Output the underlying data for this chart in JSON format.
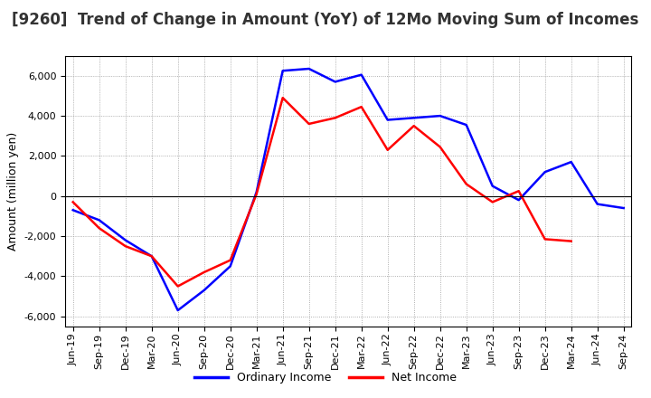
{
  "title": "[9260]  Trend of Change in Amount (YoY) of 12Mo Moving Sum of Incomes",
  "ylabel": "Amount (million yen)",
  "x_labels": [
    "Jun-19",
    "Sep-19",
    "Dec-19",
    "Mar-20",
    "Jun-20",
    "Sep-20",
    "Dec-20",
    "Mar-21",
    "Jun-21",
    "Sep-21",
    "Dec-21",
    "Mar-22",
    "Jun-22",
    "Sep-22",
    "Dec-22",
    "Mar-23",
    "Jun-23",
    "Sep-23",
    "Dec-23",
    "Mar-24",
    "Jun-24",
    "Sep-24"
  ],
  "ordinary_income": [
    -700,
    -1200,
    -2200,
    -3000,
    -5700,
    -4700,
    -3500,
    200,
    6250,
    6350,
    5700,
    6050,
    3800,
    3900,
    4000,
    3550,
    500,
    -200,
    1200,
    1700,
    -400,
    -600
  ],
  "net_income": [
    -300,
    -1600,
    -2500,
    -3000,
    -4500,
    -3800,
    -3200,
    100,
    4900,
    3600,
    3900,
    4450,
    2300,
    3500,
    2450,
    600,
    -300,
    250,
    -2150,
    -2250,
    null,
    null
  ],
  "ordinary_income_color": "#0000ff",
  "net_income_color": "#ff0000",
  "background_color": "#ffffff",
  "grid_color": "#999999",
  "ylim": [
    -6500,
    7000
  ],
  "yticks": [
    -6000,
    -4000,
    -2000,
    0,
    2000,
    4000,
    6000
  ],
  "line_width": 1.8,
  "title_fontsize": 12,
  "title_color": "#333333",
  "legend_labels": [
    "Ordinary Income",
    "Net Income"
  ],
  "tick_fontsize": 8,
  "ylabel_fontsize": 9
}
